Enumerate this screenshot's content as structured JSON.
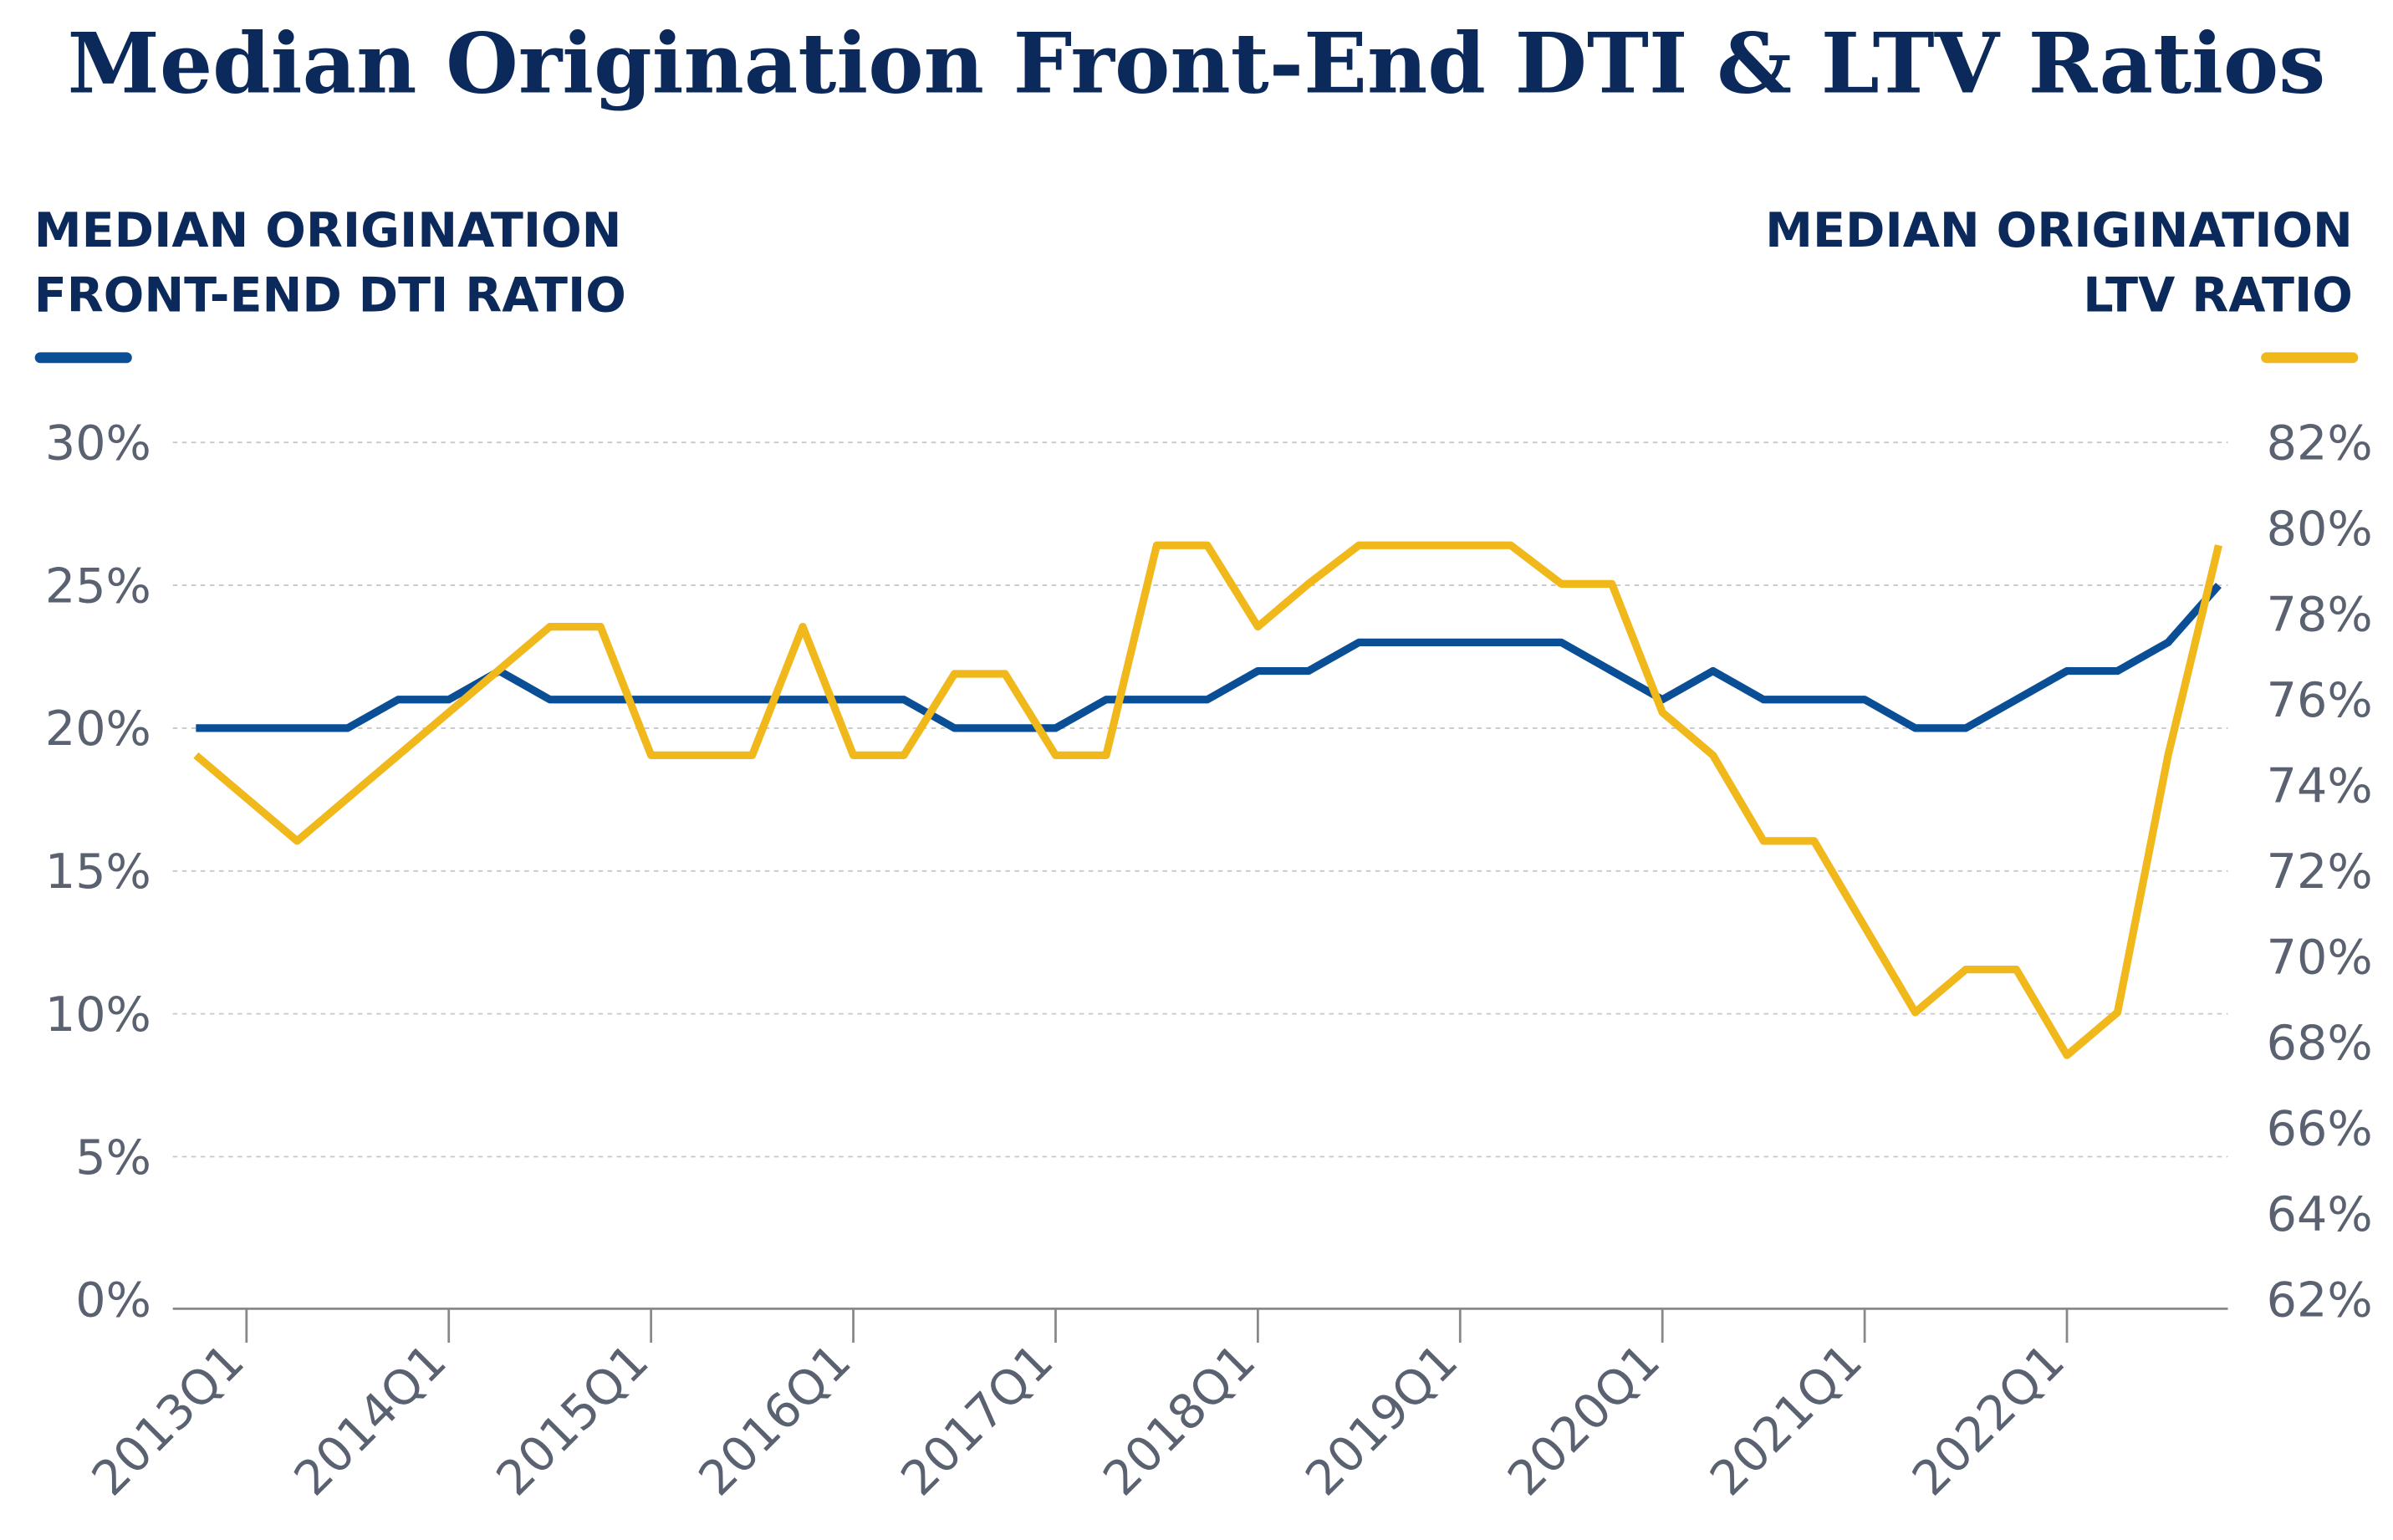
{
  "chart_data": {
    "type": "line",
    "title": "Median Origination Front-End DTI & LTV Ratios",
    "y_axis_label": [
      "MEDIAN ORIGINATION",
      "FRONT-END DTI RATIO"
    ],
    "y2_axis_label": [
      "MEDIAN ORIGINATION",
      "LTV RATIO"
    ],
    "categories": [
      null,
      "2013Q1",
      null,
      null,
      null,
      "2014Q1",
      null,
      null,
      null,
      "2015Q1",
      null,
      null,
      null,
      "2016Q1",
      null,
      null,
      null,
      "2017Q1",
      null,
      null,
      null,
      "2018Q1",
      null,
      null,
      null,
      "2019Q1",
      null,
      null,
      null,
      "2020Q1",
      null,
      null,
      null,
      "2021Q1",
      null,
      null,
      null,
      "2022Q1",
      null,
      null,
      null
    ],
    "series": [
      {
        "name": "Median Origination Front-End DTI Ratio",
        "color": "#0a4f96",
        "axis": "y",
        "values": [
          20,
          20,
          20,
          20,
          21,
          21,
          22,
          21,
          21,
          21,
          21,
          21,
          21,
          21,
          21,
          20,
          20,
          20,
          21,
          21,
          21,
          22,
          22,
          23,
          23,
          23,
          23,
          23,
          22,
          21,
          22,
          21,
          21,
          21,
          20,
          20,
          21,
          22,
          22,
          23,
          25
        ]
      },
      {
        "name": "Median Origination LTV Ratio",
        "color": "#f0b81a",
        "axis": "y2",
        "values": [
          74.7,
          73.7,
          72.7,
          73.7,
          74.7,
          75.7,
          76.7,
          77.7,
          77.7,
          74.7,
          74.7,
          74.7,
          77.7,
          74.7,
          74.7,
          76.6,
          76.6,
          74.7,
          74.7,
          79.6,
          79.6,
          77.7,
          78.7,
          79.6,
          79.6,
          79.6,
          79.6,
          78.7,
          78.7,
          75.7,
          74.7,
          72.7,
          72.7,
          70.7,
          68.7,
          69.7,
          69.7,
          67.7,
          68.7,
          74.7,
          79.6
        ]
      }
    ],
    "ylim": [
      0,
      30
    ],
    "yticks": [
      {
        "value": 0,
        "label": "0%"
      },
      {
        "value": 5,
        "label": "5%"
      },
      {
        "value": 10,
        "label": "10%"
      },
      {
        "value": 15,
        "label": "15%"
      },
      {
        "value": 20,
        "label": "20%"
      },
      {
        "value": 25,
        "label": "25%"
      },
      {
        "value": 30,
        "label": "30%"
      }
    ],
    "y2lim": [
      62,
      82
    ],
    "y2ticks": [
      {
        "value": 62,
        "label": "62%"
      },
      {
        "value": 64,
        "label": "64%"
      },
      {
        "value": 66,
        "label": "66%"
      },
      {
        "value": 68,
        "label": "68%"
      },
      {
        "value": 70,
        "label": "70%"
      },
      {
        "value": 72,
        "label": "72%"
      },
      {
        "value": 74,
        "label": "74%"
      },
      {
        "value": 76,
        "label": "76%"
      },
      {
        "value": 78,
        "label": "78%"
      },
      {
        "value": 80,
        "label": "80%"
      },
      {
        "value": 82,
        "label": "82%"
      }
    ],
    "grid": true
  }
}
